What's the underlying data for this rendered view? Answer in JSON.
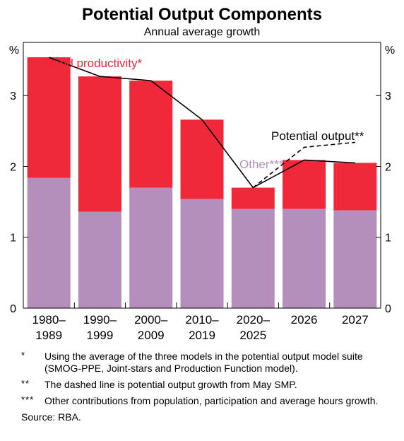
{
  "chart_data": {
    "type": "bar",
    "title": "Potential Output Components",
    "subtitle": "Annual average growth",
    "ylabel": "%",
    "ylim": [
      0,
      3.75
    ],
    "yticks": [
      0,
      1,
      2,
      3
    ],
    "categories": [
      [
        "1980–",
        "1989"
      ],
      [
        "1990–",
        "1999"
      ],
      [
        "2000–",
        "2009"
      ],
      [
        "2010–",
        "2019"
      ],
      [
        "2020–",
        "2025"
      ],
      [
        "2026"
      ],
      [
        "2027"
      ]
    ],
    "stacked": true,
    "series": [
      {
        "name": "Other***",
        "color": "#b48fbb",
        "values": [
          1.84,
          1.36,
          1.7,
          1.54,
          1.4,
          1.4,
          1.38
        ]
      },
      {
        "name": "Trend productivity*",
        "color": "#f0293a",
        "values": [
          1.7,
          1.91,
          1.51,
          1.12,
          0.3,
          0.69,
          0.67
        ]
      }
    ],
    "lines": [
      {
        "name": "Potential output**",
        "style": "solid",
        "color": "#000000",
        "points": [
          [
            0,
            3.54
          ],
          [
            1,
            3.27
          ],
          [
            2,
            3.21
          ],
          [
            3,
            2.66
          ],
          [
            4,
            1.7
          ],
          [
            5,
            2.09
          ],
          [
            6,
            2.05
          ]
        ]
      },
      {
        "name": "Potential output** (May SMP)",
        "style": "dashed",
        "color": "#000000",
        "points": [
          [
            4,
            1.7
          ],
          [
            5,
            2.27
          ],
          [
            6,
            2.34
          ]
        ]
      }
    ],
    "annotations": {
      "trend": "Trend productivity*",
      "potential": "Potential output**",
      "other": "Other***"
    },
    "grid": false
  },
  "notes": [
    {
      "mark": "*",
      "text": "Using the average of the three models in the potential output model suite (SMOG-PPE, Joint-stars and Production Function model)."
    },
    {
      "mark": "**",
      "text": "The dashed line is potential output growth from May SMP."
    },
    {
      "mark": "***",
      "text": "Other contributions from population, participation and average hours growth."
    }
  ],
  "source": "Source: RBA."
}
